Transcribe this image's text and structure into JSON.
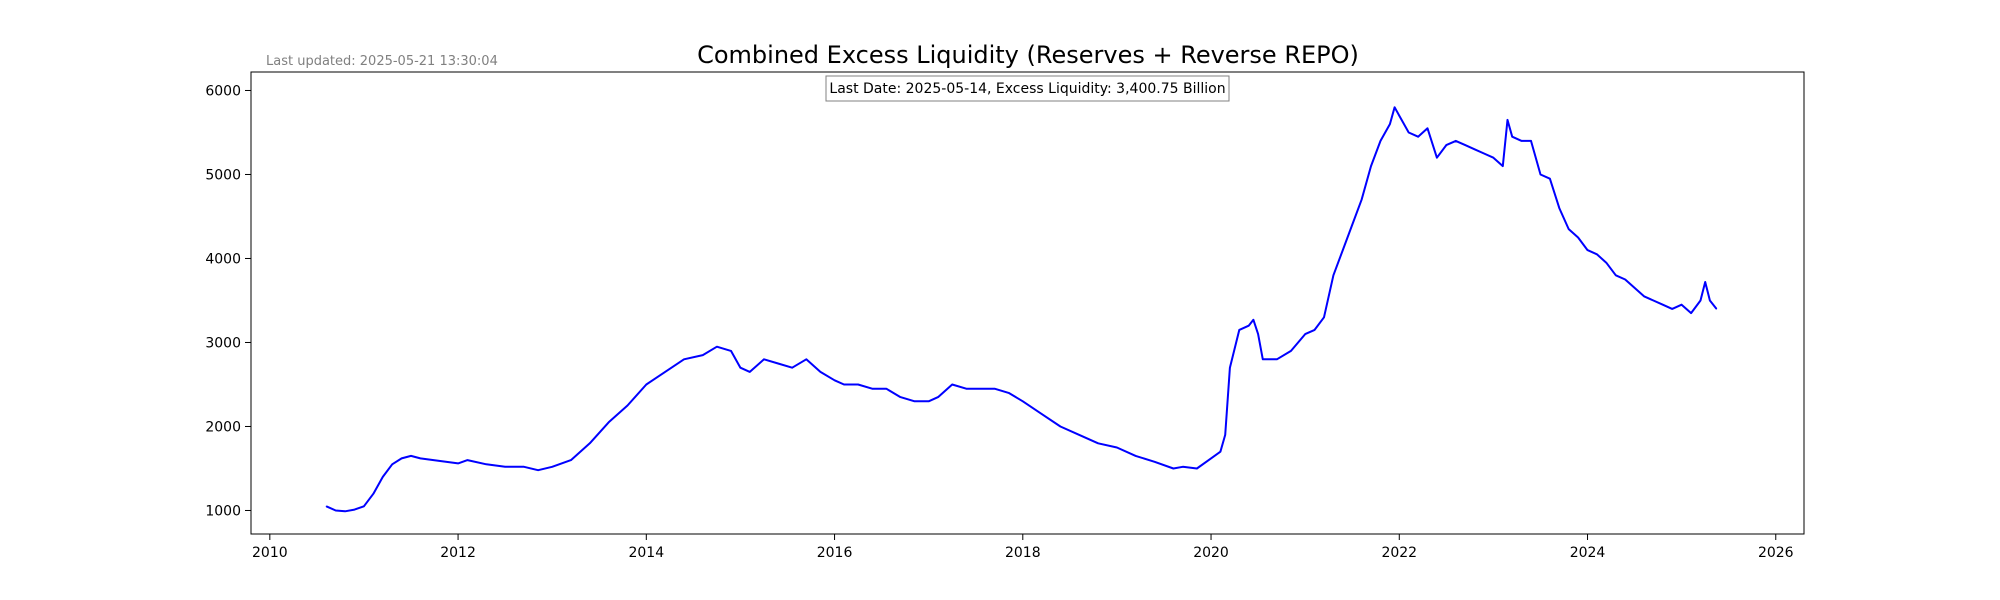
{
  "chart_data": {
    "type": "line",
    "title": "Combined Excess Liquidity (Reserves + Reverse REPO)",
    "last_updated": "Last updated: 2025-05-21 13:30:04",
    "annotation": "Last Date: 2025-05-14, Excess Liquidity: 3,400.75 Billion",
    "xlabel": "",
    "ylabel": "",
    "xlim": [
      2009.8,
      2026.3
    ],
    "ylim": [
      720,
      6220
    ],
    "x_ticks": [
      2010,
      2012,
      2014,
      2016,
      2018,
      2020,
      2022,
      2024,
      2026
    ],
    "y_ticks": [
      1000,
      2000,
      3000,
      4000,
      5000,
      6000
    ],
    "grid": false,
    "line_color": "#0000ff",
    "series": [
      {
        "x": [
          2010.6,
          2010.7,
          2010.8,
          2010.9,
          2011.0,
          2011.1,
          2011.2,
          2011.3,
          2011.4,
          2011.5,
          2011.6,
          2011.8,
          2012.0,
          2012.1,
          2012.3,
          2012.5,
          2012.7,
          2012.85,
          2013.0,
          2013.2,
          2013.4,
          2013.6,
          2013.8,
          2014.0,
          2014.2,
          2014.4,
          2014.6,
          2014.75,
          2014.9,
          2015.0,
          2015.1,
          2015.25,
          2015.4,
          2015.55,
          2015.7,
          2015.85,
          2016.0,
          2016.1,
          2016.25,
          2016.4,
          2016.55,
          2016.7,
          2016.85,
          2017.0,
          2017.1,
          2017.25,
          2017.4,
          2017.55,
          2017.7,
          2017.85,
          2018.0,
          2018.2,
          2018.4,
          2018.6,
          2018.8,
          2019.0,
          2019.2,
          2019.4,
          2019.6,
          2019.7,
          2019.85,
          2020.0,
          2020.1,
          2020.15,
          2020.2,
          2020.3,
          2020.4,
          2020.45,
          2020.5,
          2020.55,
          2020.7,
          2020.85,
          2021.0,
          2021.1,
          2021.2,
          2021.3,
          2021.4,
          2021.5,
          2021.6,
          2021.7,
          2021.8,
          2021.9,
          2021.95,
          2022.0,
          2022.1,
          2022.2,
          2022.3,
          2022.4,
          2022.5,
          2022.6,
          2022.7,
          2022.8,
          2022.9,
          2023.0,
          2023.1,
          2023.15,
          2023.2,
          2023.3,
          2023.4,
          2023.5,
          2023.6,
          2023.7,
          2023.8,
          2023.9,
          2024.0,
          2024.1,
          2024.2,
          2024.3,
          2024.4,
          2024.5,
          2024.6,
          2024.7,
          2024.8,
          2024.9,
          2025.0,
          2025.1,
          2025.2,
          2025.25,
          2025.3,
          2025.37
        ],
        "y": [
          1050,
          1000,
          990,
          1010,
          1050,
          1200,
          1400,
          1550,
          1620,
          1650,
          1620,
          1590,
          1560,
          1600,
          1550,
          1520,
          1520,
          1480,
          1520,
          1600,
          1800,
          2050,
          2250,
          2500,
          2650,
          2800,
          2850,
          2950,
          2900,
          2700,
          2650,
          2800,
          2750,
          2700,
          2800,
          2650,
          2550,
          2500,
          2500,
          2450,
          2450,
          2350,
          2300,
          2300,
          2350,
          2500,
          2450,
          2450,
          2450,
          2400,
          2300,
          2150,
          2000,
          1900,
          1800,
          1750,
          1650,
          1580,
          1500,
          1520,
          1500,
          1620,
          1700,
          1900,
          2700,
          3150,
          3200,
          3270,
          3100,
          2800,
          2800,
          2900,
          3100,
          3150,
          3300,
          3800,
          4100,
          4400,
          4700,
          5100,
          5400,
          5600,
          5800,
          5700,
          5500,
          5450,
          5550,
          5200,
          5350,
          5400,
          5350,
          5300,
          5250,
          5200,
          5100,
          5650,
          5450,
          5400,
          5400,
          5000,
          4950,
          4600,
          4350,
          4250,
          4100,
          4050,
          3950,
          3800,
          3750,
          3650,
          3550,
          3500,
          3450,
          3400,
          3450,
          3350,
          3500,
          3720,
          3500,
          3400
        ]
      }
    ]
  }
}
